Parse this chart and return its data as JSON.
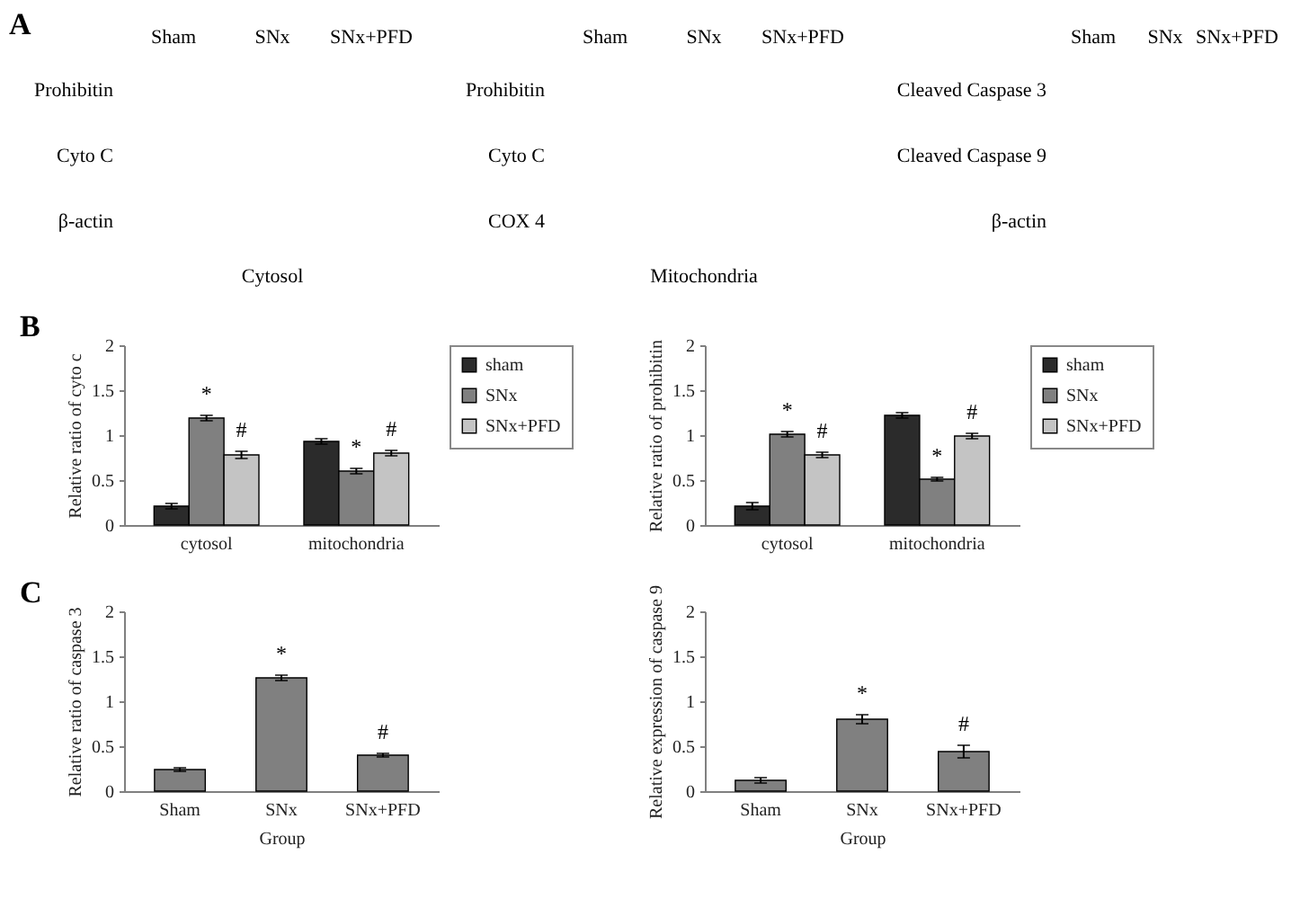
{
  "chart_data": [
    {
      "type": "other",
      "annotations": [
        "A"
      ],
      "categories": [
        "Sham",
        "SNx",
        "SNx+PFD"
      ],
      "y_categories": [
        "Prohibitin",
        "Cyto C",
        "β-actin"
      ],
      "xlabel": "Cytosol"
    },
    {
      "type": "other",
      "categories": [
        "Sham",
        "SNx",
        "SNx+PFD"
      ],
      "y_categories": [
        "Prohibitin",
        "Cyto C",
        "COX 4"
      ],
      "xlabel": "Mitochondria"
    },
    {
      "type": "other",
      "categories": [
        "Sham",
        "SNx",
        "SNx+PFD"
      ],
      "y_categories": [
        "Cleaved Caspase 3",
        "Cleaved Caspase 9",
        "β-actin"
      ]
    },
    {
      "type": "bar",
      "annotations": [
        "B"
      ],
      "categories": [
        "cytosol",
        "mitochondria"
      ],
      "ylabel": "Relative ratio of cyto c",
      "ylim": [
        0,
        2
      ],
      "yticks": [
        0,
        0.5,
        1,
        1.5,
        2
      ],
      "legend": "top right",
      "series": [
        {
          "name": "sham",
          "color": "#2b2b2b",
          "values": [
            0.21,
            0.93
          ],
          "errors": [
            0.03,
            0.03
          ]
        },
        {
          "name": "SNx",
          "color": "#808080",
          "values": [
            1.19,
            0.6
          ],
          "errors": [
            0.03,
            0.03
          ],
          "value_labels": [
            "*",
            "*"
          ]
        },
        {
          "name": "SNx+PFD",
          "color": "#c4c4c4",
          "values": [
            0.78,
            0.8
          ],
          "errors": [
            0.04,
            0.03
          ],
          "value_labels": [
            "#",
            "#"
          ]
        }
      ]
    },
    {
      "type": "bar",
      "categories": [
        "cytosol",
        "mitochondria"
      ],
      "ylabel": "Relative ratio of prohibitin",
      "ylim": [
        0,
        2
      ],
      "yticks": [
        0,
        0.5,
        1,
        1.5,
        2
      ],
      "legend": "top right",
      "series": [
        {
          "name": "sham",
          "color": "#2b2b2b",
          "values": [
            0.21,
            1.22
          ],
          "errors": [
            0.04,
            0.03
          ]
        },
        {
          "name": "SNx",
          "color": "#808080",
          "values": [
            1.01,
            0.51
          ],
          "errors": [
            0.03,
            0.02
          ],
          "value_labels": [
            "*",
            "*"
          ]
        },
        {
          "name": "SNx+PFD",
          "color": "#c4c4c4",
          "values": [
            0.78,
            0.99
          ],
          "errors": [
            0.03,
            0.03
          ],
          "value_labels": [
            "#",
            "#"
          ]
        }
      ]
    },
    {
      "type": "bar",
      "annotations": [
        "C"
      ],
      "categories": [
        "Sham",
        "SNx",
        "SNx+PFD"
      ],
      "xlabel": "Group",
      "ylabel": "Relative ratio of caspase 3",
      "ylim": [
        0,
        2
      ],
      "yticks": [
        0,
        0.5,
        1,
        1.5,
        2
      ],
      "color": "#808080",
      "values": [
        0.24,
        1.26,
        0.4
      ],
      "errors": [
        0.02,
        0.03,
        0.02
      ],
      "value_labels": [
        null,
        "*",
        "#"
      ]
    },
    {
      "type": "bar",
      "categories": [
        "Sham",
        "SNx",
        "SNx+PFD"
      ],
      "xlabel": "Group",
      "ylabel": "Relative expression of caspase 9",
      "ylim": [
        0,
        2
      ],
      "yticks": [
        0,
        0.5,
        1,
        1.5,
        2
      ],
      "color": "#808080",
      "values": [
        0.12,
        0.8,
        0.44
      ],
      "errors": [
        0.03,
        0.05,
        0.07
      ],
      "value_labels": [
        null,
        "*",
        "#"
      ]
    }
  ]
}
